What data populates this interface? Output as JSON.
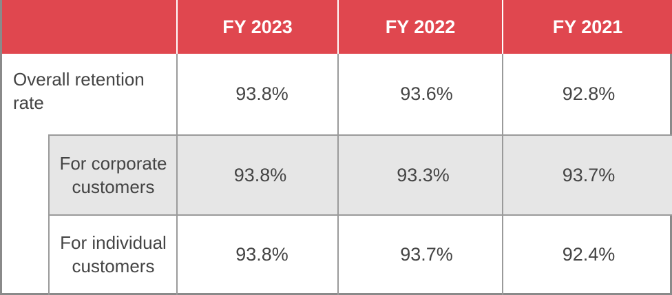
{
  "table": {
    "columns": [
      "",
      "FY 2023",
      "FY 2022",
      "FY 2021"
    ],
    "rows": [
      {
        "label": "Overall retention rate",
        "values": [
          "93.8%",
          "93.6%",
          "92.8%"
        ]
      },
      {
        "label": "For corporate customers",
        "values": [
          "93.8%",
          "93.3%",
          "93.7%"
        ]
      },
      {
        "label": "For individual customers",
        "values": [
          "93.8%",
          "93.7%",
          "92.4%"
        ]
      }
    ]
  },
  "colors": {
    "header": "#e0474f",
    "shaded_row": "#e6e6e6",
    "grid": "#9a9a9a",
    "text": "#444444"
  }
}
